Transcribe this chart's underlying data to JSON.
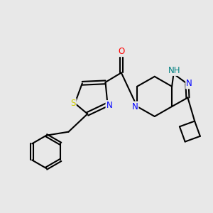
{
  "bg_color": "#e8e8e8",
  "bond_color": "#000000",
  "bond_lw": 1.5,
  "atom_colors": {
    "N": "#0000ff",
    "O": "#ff0000",
    "S": "#cccc00",
    "NH": "#008080",
    "C": "#000000"
  },
  "font_size": 8.5
}
